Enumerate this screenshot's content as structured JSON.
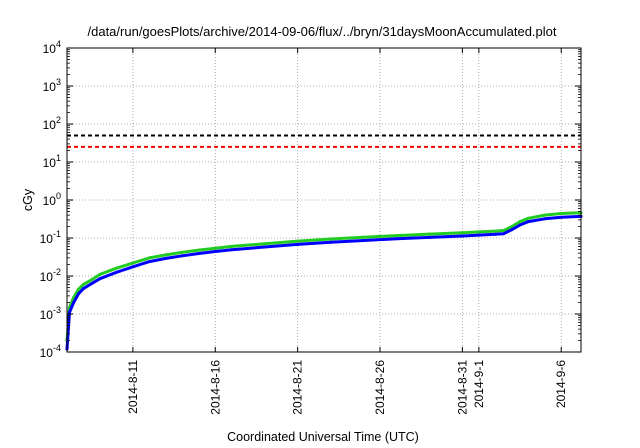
{
  "chart_data": {
    "type": "line",
    "title": "/data/run/goesPlots/archive/2014-09-06/flux/../bryn/31daysMoonAccumulated.plot",
    "xlabel": "Coordinated Universal Time (UTC)",
    "ylabel": "cGy",
    "yscale": "log",
    "ylim": [
      0.0001,
      10000
    ],
    "xlim_days": [
      0,
      31.2
    ],
    "grid": true,
    "x_ticks": [
      {
        "label": "2014-8-11",
        "day": 4
      },
      {
        "label": "2014-8-16",
        "day": 9
      },
      {
        "label": "2014-8-21",
        "day": 14
      },
      {
        "label": "2014-8-26",
        "day": 19
      },
      {
        "label": "2014-8-31",
        "day": 24
      },
      {
        "label": "2014-9-1",
        "day": 25
      },
      {
        "label": "2014-9-6",
        "day": 30
      }
    ],
    "y_ticks": [
      {
        "base": "10",
        "exp": "-4",
        "value": 0.0001
      },
      {
        "base": "10",
        "exp": "-3",
        "value": 0.001
      },
      {
        "base": "10",
        "exp": "-2",
        "value": 0.01
      },
      {
        "base": "10",
        "exp": "-1",
        "value": 0.1
      },
      {
        "base": "10",
        "exp": "0",
        "value": 1
      },
      {
        "base": "10",
        "exp": "1",
        "value": 10
      },
      {
        "base": "10",
        "exp": "2",
        "value": 100
      },
      {
        "base": "10",
        "exp": "3",
        "value": 1000
      },
      {
        "base": "10",
        "exp": "4",
        "value": 10000
      }
    ],
    "thresholds": [
      {
        "value": 50,
        "color": "#000000",
        "style": "dashed"
      },
      {
        "value": 25,
        "color": "#ff0000",
        "style": "dashed"
      }
    ],
    "series": [
      {
        "color": "#22cc22",
        "x": [
          0.0,
          0.15,
          0.4,
          0.7,
          1.0,
          1.5,
          2.0,
          3.0,
          4.0,
          5.0,
          6.0,
          7.0,
          8.0,
          9.0,
          10.0,
          12.0,
          14.0,
          16.0,
          18.0,
          20.0,
          22.0,
          24.0,
          25.0,
          26.0,
          26.5,
          27.0,
          27.5,
          28.0,
          29.0,
          30.0,
          31.2
        ],
        "y": [
          0.0002,
          0.0015,
          0.0027,
          0.0045,
          0.006,
          0.008,
          0.011,
          0.016,
          0.022,
          0.03,
          0.036,
          0.042,
          0.048,
          0.054,
          0.06,
          0.071,
          0.083,
          0.094,
          0.105,
          0.116,
          0.127,
          0.138,
          0.145,
          0.152,
          0.158,
          0.2,
          0.27,
          0.33,
          0.4,
          0.44,
          0.46
        ]
      },
      {
        "color": "#0000ff",
        "x": [
          0.0,
          0.15,
          0.4,
          0.7,
          1.0,
          1.5,
          2.0,
          3.0,
          4.0,
          5.0,
          6.0,
          7.0,
          8.0,
          9.0,
          10.0,
          12.0,
          14.0,
          16.0,
          18.0,
          20.0,
          22.0,
          24.0,
          25.0,
          26.0,
          26.5,
          27.0,
          27.5,
          28.0,
          29.0,
          30.0,
          31.2
        ],
        "y": [
          0.00012,
          0.0011,
          0.002,
          0.0034,
          0.0047,
          0.0063,
          0.0085,
          0.0125,
          0.0175,
          0.024,
          0.029,
          0.034,
          0.039,
          0.044,
          0.049,
          0.058,
          0.068,
          0.077,
          0.086,
          0.095,
          0.104,
          0.113,
          0.119,
          0.125,
          0.13,
          0.165,
          0.22,
          0.27,
          0.32,
          0.35,
          0.37
        ]
      }
    ]
  }
}
